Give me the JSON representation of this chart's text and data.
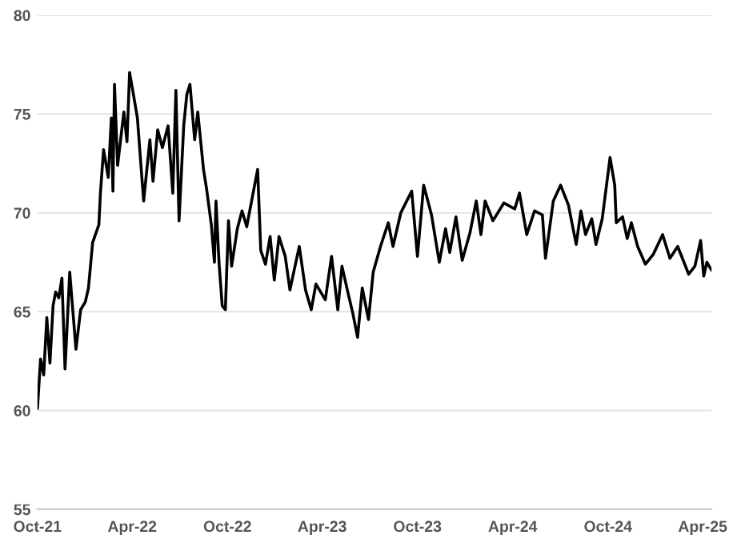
{
  "chart_data": {
    "type": "line",
    "grid": "y",
    "ylim": [
      55,
      80
    ],
    "yticks": [
      55,
      60,
      65,
      70,
      75,
      80
    ],
    "xlim": [
      "2021-10-01",
      "2025-04-18"
    ],
    "xticks": [
      {
        "value": "2021-10-01",
        "label": "Oct-21"
      },
      {
        "value": "2022-04-01",
        "label": "Apr-22"
      },
      {
        "value": "2022-10-01",
        "label": "Oct-22"
      },
      {
        "value": "2023-04-01",
        "label": "Apr-23"
      },
      {
        "value": "2023-10-01",
        "label": "Oct-23"
      },
      {
        "value": "2024-04-01",
        "label": "Apr-24"
      },
      {
        "value": "2024-10-01",
        "label": "Oct-24"
      },
      {
        "value": "2025-04-01",
        "label": "Apr-25"
      }
    ],
    "x": [
      "2021-10-01",
      "2021-10-07",
      "2021-10-13",
      "2021-10-19",
      "2021-10-25",
      "2021-10-31",
      "2021-11-05",
      "2021-11-11",
      "2021-11-17",
      "2021-11-23",
      "2021-12-02",
      "2021-12-14",
      "2021-12-23",
      "2022-01-01",
      "2022-01-07",
      "2022-01-15",
      "2022-01-27",
      "2022-01-30",
      "2022-02-05",
      "2022-02-14",
      "2022-02-20",
      "2022-02-23",
      "2022-02-26",
      "2022-03-04",
      "2022-03-16",
      "2022-03-22",
      "2022-03-27",
      "2022-04-02",
      "2022-04-11",
      "2022-04-23",
      "2022-05-05",
      "2022-05-11",
      "2022-05-20",
      "2022-05-29",
      "2022-06-09",
      "2022-06-18",
      "2022-06-24",
      "2022-06-30",
      "2022-07-09",
      "2022-07-15",
      "2022-07-21",
      "2022-07-30",
      "2022-08-05",
      "2022-08-16",
      "2022-08-22",
      "2022-08-31",
      "2022-09-06",
      "2022-09-09",
      "2022-09-15",
      "2022-09-21",
      "2022-09-27",
      "2022-10-03",
      "2022-10-09",
      "2022-10-20",
      "2022-10-29",
      "2022-11-07",
      "2022-11-28",
      "2022-12-04",
      "2022-12-13",
      "2022-12-22",
      "2022-12-30",
      "2023-01-08",
      "2023-01-20",
      "2023-01-29",
      "2023-02-16",
      "2023-02-28",
      "2023-03-11",
      "2023-03-20",
      "2023-04-07",
      "2023-04-19",
      "2023-05-01",
      "2023-05-09",
      "2023-05-21",
      "2023-05-30",
      "2023-06-08",
      "2023-06-17",
      "2023-06-29",
      "2023-07-08",
      "2023-07-22",
      "2023-08-06",
      "2023-08-15",
      "2023-08-30",
      "2023-09-20",
      "2023-10-01",
      "2023-10-13",
      "2023-10-28",
      "2023-11-12",
      "2023-11-24",
      "2023-12-02",
      "2023-12-14",
      "2023-12-26",
      "2024-01-10",
      "2024-01-22",
      "2024-01-31",
      "2024-02-08",
      "2024-02-23",
      "2024-03-15",
      "2024-04-05",
      "2024-04-14",
      "2024-04-28",
      "2024-05-13",
      "2024-05-28",
      "2024-06-03",
      "2024-06-18",
      "2024-07-02",
      "2024-07-17",
      "2024-08-01",
      "2024-08-10",
      "2024-08-19",
      "2024-08-31",
      "2024-09-08",
      "2024-09-20",
      "2024-10-05",
      "2024-10-14",
      "2024-10-17",
      "2024-10-29",
      "2024-11-07",
      "2024-11-15",
      "2024-11-27",
      "2024-12-12",
      "2024-12-27",
      "2025-01-14",
      "2025-01-28",
      "2025-02-12",
      "2025-03-05",
      "2025-03-17",
      "2025-03-28",
      "2025-04-03",
      "2025-04-09",
      "2025-04-18"
    ],
    "series": [
      {
        "color": "#000000",
        "values": [
          60.1,
          62.6,
          61.8,
          64.7,
          62.4,
          65.3,
          66.0,
          65.7,
          66.7,
          62.1,
          67.0,
          63.1,
          65.1,
          65.5,
          66.2,
          68.5,
          69.4,
          71.0,
          73.2,
          71.8,
          74.8,
          71.1,
          76.5,
          72.4,
          75.1,
          73.6,
          77.1,
          76.2,
          74.8,
          70.6,
          73.7,
          71.6,
          74.2,
          73.3,
          74.4,
          71.0,
          76.2,
          69.6,
          74.4,
          76.0,
          76.5,
          73.7,
          75.1,
          72.2,
          71.2,
          69.4,
          67.5,
          70.6,
          67.4,
          65.3,
          65.1,
          69.6,
          67.3,
          69.2,
          70.1,
          69.3,
          72.2,
          68.1,
          67.4,
          68.8,
          66.6,
          68.8,
          67.8,
          66.1,
          68.3,
          66.1,
          65.1,
          66.4,
          65.6,
          67.8,
          65.1,
          67.3,
          65.9,
          64.9,
          63.7,
          66.2,
          64.6,
          67.0,
          68.3,
          69.5,
          68.3,
          70.0,
          71.1,
          67.8,
          71.4,
          69.9,
          67.5,
          69.2,
          68.0,
          69.8,
          67.6,
          69.0,
          70.6,
          68.9,
          70.6,
          69.6,
          70.5,
          70.2,
          71.0,
          68.9,
          70.1,
          69.9,
          67.7,
          70.6,
          71.4,
          70.4,
          68.4,
          70.1,
          68.9,
          69.7,
          68.4,
          69.7,
          72.8,
          71.4,
          69.5,
          69.8,
          68.7,
          69.5,
          68.3,
          67.4,
          67.9,
          68.9,
          67.7,
          68.3,
          66.9,
          67.3,
          68.6,
          66.8,
          67.5,
          67.1
        ]
      }
    ]
  }
}
